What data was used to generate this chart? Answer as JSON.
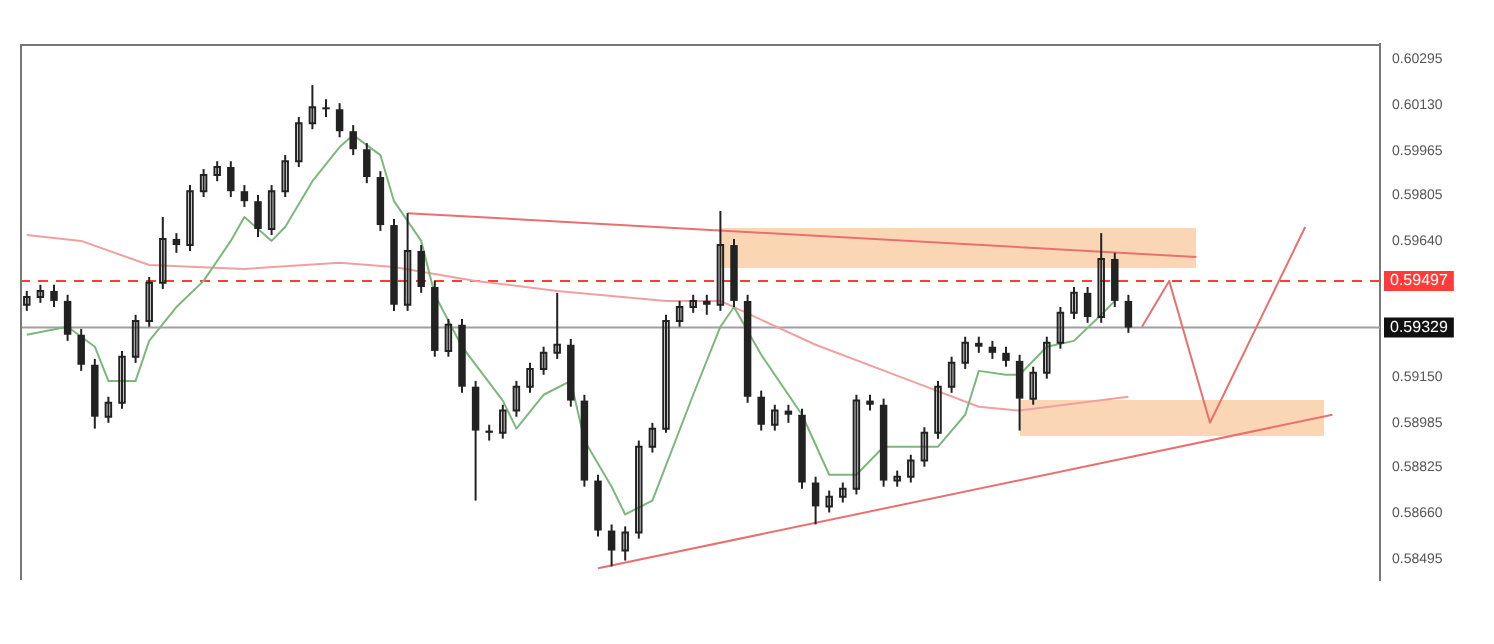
{
  "chart_data": {
    "type": "candlestick",
    "color": "#222222",
    "marker": "none",
    "legend": false,
    "grid": false,
    "tick_labels": "y",
    "categories": [
      null,
      null,
      null,
      null,
      null,
      null,
      null,
      null,
      null,
      null,
      null,
      null,
      null,
      null,
      null,
      null,
      null,
      null,
      null,
      null,
      null,
      null,
      null,
      null,
      null,
      null,
      null,
      null,
      null,
      null,
      null,
      null,
      null,
      null,
      null,
      null,
      null,
      null,
      null,
      null,
      null,
      null,
      null,
      null,
      null,
      null,
      null,
      null,
      null,
      null,
      null,
      null,
      null,
      null,
      null,
      null,
      null,
      null,
      null,
      null,
      null,
      null,
      null,
      null,
      null,
      null,
      null,
      null,
      null,
      null,
      null,
      null,
      null,
      null,
      null,
      null,
      null,
      null,
      null,
      null,
      null,
      null,
      null,
      null,
      null,
      null,
      null,
      null,
      null,
      null,
      null,
      null,
      null,
      null,
      null,
      null,
      null,
      null,
      null,
      null
    ],
    "ohlc": [
      [
        0.59411,
        0.59461,
        0.59389,
        0.59439
      ],
      [
        0.59439,
        0.59483,
        0.59418,
        0.59461
      ],
      [
        0.59461,
        0.59483,
        0.59403,
        0.59425
      ],
      [
        0.59425,
        0.59447,
        0.59281,
        0.59303
      ],
      [
        0.59303,
        0.59324,
        0.59173,
        0.59195
      ],
      [
        0.59195,
        0.59216,
        0.58965,
        0.59008
      ],
      [
        0.59008,
        0.5908,
        0.58986,
        0.59058
      ],
      [
        0.59058,
        0.59245,
        0.59037,
        0.59224
      ],
      [
        0.59224,
        0.59375,
        0.59202,
        0.59353
      ],
      [
        0.59353,
        0.59511,
        0.59332,
        0.5949
      ],
      [
        0.5949,
        0.59727,
        0.59468,
        0.59648
      ],
      [
        0.59648,
        0.59669,
        0.59598,
        0.59626
      ],
      [
        0.59626,
        0.59842,
        0.59605,
        0.5982
      ],
      [
        0.5982,
        0.599,
        0.59799,
        0.59878
      ],
      [
        0.59878,
        0.59928,
        0.59856,
        0.59907
      ],
      [
        0.59907,
        0.59928,
        0.59799,
        0.5982
      ],
      [
        0.5982,
        0.59842,
        0.59763,
        0.59784
      ],
      [
        0.59784,
        0.59806,
        0.59655,
        0.59684
      ],
      [
        0.59684,
        0.59842,
        0.59662,
        0.5982
      ],
      [
        0.5982,
        0.5995,
        0.59799,
        0.59928
      ],
      [
        0.59928,
        0.60087,
        0.59907,
        0.60065
      ],
      [
        0.60065,
        0.60202,
        0.60043,
        0.60122
      ],
      [
        0.60122,
        0.60151,
        0.60087,
        0.60115
      ],
      [
        0.60115,
        0.60137,
        0.60014,
        0.60036
      ],
      [
        0.60036,
        0.60058,
        0.5995,
        0.59971
      ],
      [
        0.59971,
        0.59993,
        0.59849,
        0.59871
      ],
      [
        0.59871,
        0.59892,
        0.59677,
        0.59698
      ],
      [
        0.59698,
        0.5972,
        0.59389,
        0.59411
      ],
      [
        0.59411,
        0.59741,
        0.59389,
        0.59605
      ],
      [
        0.59605,
        0.59626,
        0.59454,
        0.59475
      ],
      [
        0.59475,
        0.59497,
        0.59224,
        0.59245
      ],
      [
        0.59245,
        0.5936,
        0.59224,
        0.59339
      ],
      [
        0.59339,
        0.5936,
        0.59094,
        0.59116
      ],
      [
        0.59116,
        0.59137,
        0.58706,
        0.58958
      ],
      [
        0.58958,
        0.58979,
        0.58922,
        0.5895
      ],
      [
        0.5895,
        0.59051,
        0.58929,
        0.5903
      ],
      [
        0.5903,
        0.59137,
        0.59008,
        0.59116
      ],
      [
        0.59116,
        0.59202,
        0.59094,
        0.5918
      ],
      [
        0.5918,
        0.5926,
        0.59159,
        0.59238
      ],
      [
        0.59238,
        0.59454,
        0.59216,
        0.59267
      ],
      [
        0.59267,
        0.59288,
        0.59044,
        0.59066
      ],
      [
        0.59066,
        0.59087,
        0.58756,
        0.58778
      ],
      [
        0.58778,
        0.58799,
        0.58577,
        0.58598
      ],
      [
        0.58598,
        0.5862,
        0.58469,
        0.58526
      ],
      [
        0.58526,
        0.58613,
        0.5849,
        0.58591
      ],
      [
        0.58591,
        0.58922,
        0.58569,
        0.589
      ],
      [
        0.589,
        0.58986,
        0.58879,
        0.58965
      ],
      [
        0.58965,
        0.59375,
        0.5895,
        0.59353
      ],
      [
        0.59353,
        0.59425,
        0.59332,
        0.59403
      ],
      [
        0.59403,
        0.59447,
        0.59382,
        0.59425
      ],
      [
        0.59425,
        0.59447,
        0.59375,
        0.59411
      ],
      [
        0.59411,
        0.59749,
        0.59389,
        0.59626
      ],
      [
        0.59626,
        0.59648,
        0.59403,
        0.59425
      ],
      [
        0.59425,
        0.59447,
        0.59058,
        0.5908
      ],
      [
        0.5908,
        0.59102,
        0.58958,
        0.58979
      ],
      [
        0.58979,
        0.59051,
        0.58958,
        0.5903
      ],
      [
        0.5903,
        0.59051,
        0.58986,
        0.59015
      ],
      [
        0.59015,
        0.59037,
        0.58749,
        0.58771
      ],
      [
        0.58771,
        0.58792,
        0.5862,
        0.58685
      ],
      [
        0.58685,
        0.58742,
        0.58663,
        0.5872
      ],
      [
        0.5872,
        0.58771,
        0.58699,
        0.58749
      ],
      [
        0.58749,
        0.59087,
        0.58728,
        0.59066
      ],
      [
        0.59066,
        0.59087,
        0.5903,
        0.59051
      ],
      [
        0.59051,
        0.59073,
        0.58756,
        0.58778
      ],
      [
        0.58778,
        0.58814,
        0.58756,
        0.58792
      ],
      [
        0.58792,
        0.58871,
        0.58771,
        0.5885
      ],
      [
        0.5885,
        0.5897,
        0.58828,
        0.5895
      ],
      [
        0.5895,
        0.59137,
        0.58929,
        0.59116
      ],
      [
        0.59116,
        0.59224,
        0.59094,
        0.59202
      ],
      [
        0.59202,
        0.59296,
        0.5918,
        0.59274
      ],
      [
        0.59274,
        0.59296,
        0.59238,
        0.5926
      ],
      [
        0.5926,
        0.59281,
        0.59216,
        0.59238
      ],
      [
        0.59238,
        0.5926,
        0.59188,
        0.59209
      ],
      [
        0.59209,
        0.59231,
        0.58958,
        0.59073
      ],
      [
        0.59073,
        0.59188,
        0.59051,
        0.59166
      ],
      [
        0.59166,
        0.59296,
        0.59145,
        0.59274
      ],
      [
        0.59274,
        0.59403,
        0.59253,
        0.59382
      ],
      [
        0.59382,
        0.59475,
        0.5936,
        0.59454
      ],
      [
        0.59454,
        0.59475,
        0.59346,
        0.59367
      ],
      [
        0.59367,
        0.59669,
        0.59346,
        0.59576
      ],
      [
        0.59576,
        0.59598,
        0.59403,
        0.59425
      ],
      [
        0.59425,
        0.59447,
        0.5931,
        0.59329
      ],
      null,
      null,
      null,
      null,
      null,
      null,
      null,
      null,
      null,
      null,
      null,
      null,
      null,
      null,
      null,
      null,
      null,
      null
    ],
    "series": [
      {
        "type": "line",
        "color": "#7cb87c",
        "values": [
          0.59303,
          null,
          null,
          0.59332,
          null,
          0.5926,
          0.59137,
          null,
          0.59137,
          0.59281,
          null,
          0.59403,
          null,
          0.59497,
          null,
          0.59641,
          0.59727,
          null,
          0.59641,
          0.59691,
          null,
          0.59856,
          null,
          0.59979,
          0.60022,
          null,
          0.5995,
          0.59784,
          null,
          0.59641,
          0.59447,
          null,
          0.5926,
          null,
          null,
          0.59066,
          0.58965,
          null,
          0.59087,
          null,
          0.59137,
          0.58922,
          null,
          0.58756,
          0.58656,
          null,
          0.58706,
          null,
          null,
          0.59087,
          null,
          0.59332,
          0.59403,
          null,
          0.59231,
          null,
          null,
          0.59015,
          null,
          0.58799,
          null,
          0.58799,
          null,
          0.589,
          null,
          0.589,
          null,
          0.589,
          null,
          0.59015,
          0.59173,
          null,
          0.59159,
          0.59159,
          null,
          0.5926,
          null,
          0.59281,
          null,
          0.59375,
          0.59425,
          null,
          null,
          null,
          null,
          null,
          null,
          null,
          null,
          null,
          null,
          null,
          null,
          null,
          null,
          null,
          null,
          null,
          null,
          null
        ]
      },
      {
        "type": "line",
        "color": "#f0a0a0",
        "values": [
          0.59662,
          null,
          null,
          null,
          0.59641,
          null,
          null,
          null,
          null,
          0.59554,
          null,
          null,
          null,
          null,
          null,
          null,
          0.5954,
          null,
          null,
          null,
          null,
          null,
          null,
          0.59562,
          null,
          null,
          null,
          0.59547,
          null,
          null,
          null,
          null,
          null,
          0.59497,
          null,
          null,
          null,
          null,
          null,
          0.59461,
          null,
          null,
          null,
          null,
          null,
          null,
          null,
          0.59425,
          null,
          null,
          null,
          0.59425,
          null,
          null,
          null,
          null,
          null,
          null,
          0.59267,
          null,
          null,
          null,
          null,
          null,
          null,
          0.59137,
          null,
          null,
          null,
          null,
          0.59044,
          null,
          null,
          0.5903,
          null,
          null,
          null,
          null,
          null,
          null,
          null,
          0.5908,
          null,
          null,
          null,
          null,
          null,
          null,
          null,
          null,
          null,
          null,
          null,
          null,
          null,
          null,
          null,
          null,
          null,
          null
        ]
      },
      {
        "type": "line",
        "color": "#e87070",
        "values": [
          null,
          null,
          null,
          null,
          null,
          null,
          null,
          null,
          null,
          null,
          null,
          null,
          null,
          null,
          null,
          null,
          null,
          null,
          null,
          null,
          null,
          null,
          null,
          null,
          null,
          null,
          null,
          null,
          0.59741,
          null,
          null,
          null,
          null,
          null,
          null,
          null,
          null,
          null,
          null,
          null,
          null,
          null,
          null,
          null,
          null,
          null,
          null,
          null,
          null,
          null,
          null,
          null,
          null,
          null,
          null,
          null,
          null,
          null,
          null,
          null,
          null,
          null,
          null,
          null,
          null,
          null,
          null,
          null,
          null,
          null,
          null,
          null,
          null,
          null,
          null,
          null,
          null,
          null,
          null,
          null,
          null,
          null,
          null,
          null,
          null,
          null,
          0.59583,
          null,
          null,
          null,
          null,
          null,
          null,
          null,
          null,
          null,
          null,
          null,
          null,
          null
        ]
      },
      {
        "type": "line",
        "color": "#e87070",
        "values": [
          null,
          null,
          null,
          null,
          null,
          null,
          null,
          null,
          null,
          null,
          null,
          null,
          null,
          null,
          null,
          null,
          null,
          null,
          null,
          null,
          null,
          null,
          null,
          null,
          null,
          null,
          null,
          null,
          null,
          null,
          null,
          null,
          null,
          null,
          null,
          null,
          null,
          null,
          null,
          null,
          null,
          null,
          0.58462,
          null,
          null,
          null,
          null,
          null,
          null,
          null,
          null,
          null,
          null,
          null,
          null,
          null,
          null,
          null,
          null,
          null,
          null,
          null,
          null,
          null,
          null,
          null,
          null,
          null,
          null,
          null,
          null,
          null,
          null,
          null,
          null,
          null,
          null,
          null,
          null,
          null,
          null,
          null,
          null,
          null,
          null,
          null,
          null,
          null,
          null,
          null,
          null,
          null,
          null,
          null,
          null,
          null,
          0.59015,
          null,
          null,
          null
        ]
      },
      {
        "type": "line",
        "color": "#e87070",
        "values": [
          null,
          null,
          null,
          null,
          null,
          null,
          null,
          null,
          null,
          null,
          null,
          null,
          null,
          null,
          null,
          null,
          null,
          null,
          null,
          null,
          null,
          null,
          null,
          null,
          null,
          null,
          null,
          null,
          null,
          null,
          null,
          null,
          null,
          null,
          null,
          null,
          null,
          null,
          null,
          null,
          null,
          null,
          null,
          null,
          null,
          null,
          null,
          null,
          null,
          null,
          null,
          null,
          null,
          null,
          null,
          null,
          null,
          null,
          null,
          null,
          null,
          null,
          null,
          null,
          null,
          null,
          null,
          null,
          null,
          null,
          null,
          null,
          null,
          null,
          null,
          null,
          null,
          null,
          null,
          null,
          null,
          null,
          0.59332,
          null,
          0.59497,
          null,
          null,
          0.58986,
          null,
          null,
          null,
          null,
          null,
          null,
          0.59691,
          null,
          null,
          null,
          null,
          null
        ]
      }
    ],
    "ylim": [
      0.5842,
      0.6035
    ],
    "yticks": [
      0.60295,
      {
        "value": 0.6013,
        "label": "0.60130"
      },
      0.59965,
      0.59805,
      {
        "value": 0.5964,
        "label": "0.59640"
      },
      {
        "value": 0.5915,
        "label": "0.59150"
      },
      0.58985,
      0.58825,
      {
        "value": 0.5866,
        "label": "0.58660"
      },
      0.58495
    ],
    "ref_lines": [
      {
        "axis": "y",
        "value": 0.59497,
        "label": "0.59497",
        "color": "#ff3b3b",
        "line_style": "dashed"
      },
      {
        "axis": "y",
        "value": 0.59329,
        "label": "0.59329",
        "color": "#a0a0a0"
      }
    ]
  }
}
